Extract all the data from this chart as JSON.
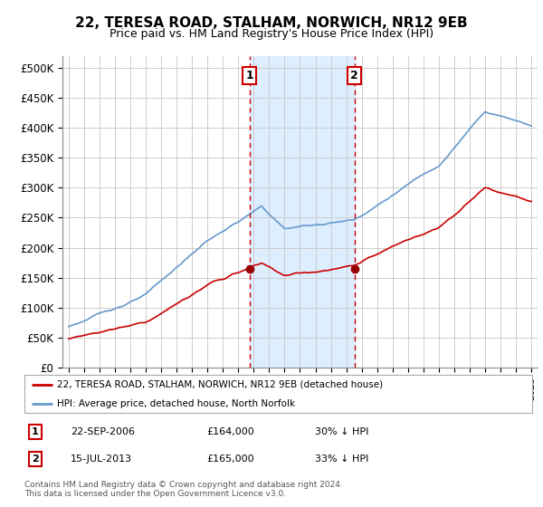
{
  "title": "22, TERESA ROAD, STALHAM, NORWICH, NR12 9EB",
  "subtitle": "Price paid vs. HM Land Registry's House Price Index (HPI)",
  "title_fontsize": 11,
  "subtitle_fontsize": 9,
  "ylabel_ticks": [
    "£0",
    "£50K",
    "£100K",
    "£150K",
    "£200K",
    "£250K",
    "£300K",
    "£350K",
    "£400K",
    "£450K",
    "£500K"
  ],
  "ytick_values": [
    0,
    50000,
    100000,
    150000,
    200000,
    250000,
    300000,
    350000,
    400000,
    450000,
    500000
  ],
  "ylim": [
    0,
    520000
  ],
  "sale1_x": 2006.73,
  "sale1_price": 164000,
  "sale2_x": 2013.54,
  "sale2_price": 165000,
  "legend_line1": "22, TERESA ROAD, STALHAM, NORWICH, NR12 9EB (detached house)",
  "legend_line2": "HPI: Average price, detached house, North Norfolk",
  "footnote": "Contains HM Land Registry data © Crown copyright and database right 2024.\nThis data is licensed under the Open Government Licence v3.0.",
  "table_rows": [
    [
      "1",
      "22-SEP-2006",
      "£164,000",
      "30% ↓ HPI"
    ],
    [
      "2",
      "15-JUL-2013",
      "£165,000",
      "33% ↓ HPI"
    ]
  ],
  "line_color_red": "#cc0000",
  "line_color_blue": "#6699cc",
  "shaded_color": "#ddeeff",
  "background_color": "#ffffff",
  "grid_color": "#cccccc",
  "vline_color": "#cc0000",
  "marker_color_red": "#990000",
  "annotation_box_color": "#cc0000"
}
